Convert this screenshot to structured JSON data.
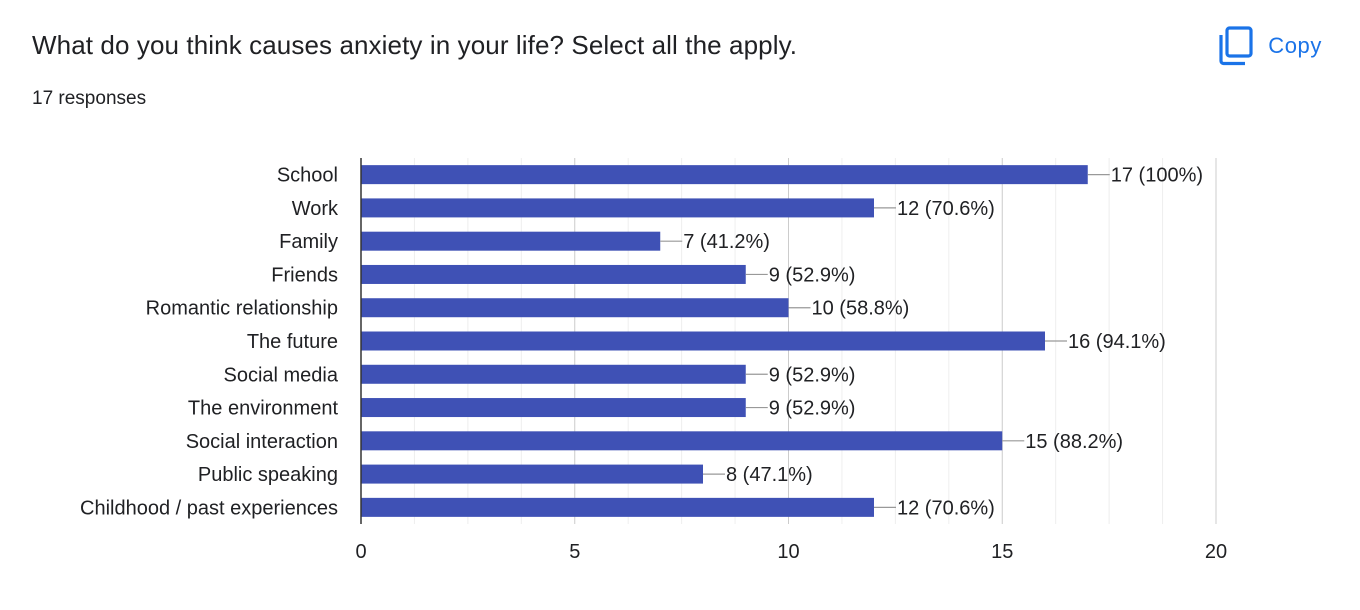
{
  "header": {
    "question": "What do you think causes anxiety in your life? Select all the apply.",
    "responses": "17 responses",
    "copy_label": "Copy",
    "copy_icon": "copy-icon"
  },
  "colors": {
    "bar": "#3f51b5",
    "accent": "#1a73e8",
    "grid": "#e0e0e0",
    "axis": "#333333"
  },
  "chart_data": {
    "type": "bar",
    "orientation": "horizontal",
    "categories": [
      "School",
      "Work",
      "Family",
      "Friends",
      "Romantic relationship",
      "The future",
      "Social media",
      "The environment",
      "Social interaction",
      "Public speaking",
      "Childhood / past experiences"
    ],
    "values": [
      17,
      12,
      7,
      9,
      10,
      16,
      9,
      9,
      15,
      8,
      12
    ],
    "data_labels": [
      "17 (100%)",
      "12 (70.6%)",
      "7 (41.2%)",
      "9 (52.9%)",
      "10 (58.8%)",
      "16 (94.1%)",
      "9 (52.9%)",
      "9 (52.9%)",
      "15 (88.2%)",
      "8 (47.1%)",
      "12 (70.6%)"
    ],
    "xlim": [
      0,
      20
    ],
    "xticks": [
      0,
      5,
      10,
      15,
      20
    ],
    "grid": true
  }
}
